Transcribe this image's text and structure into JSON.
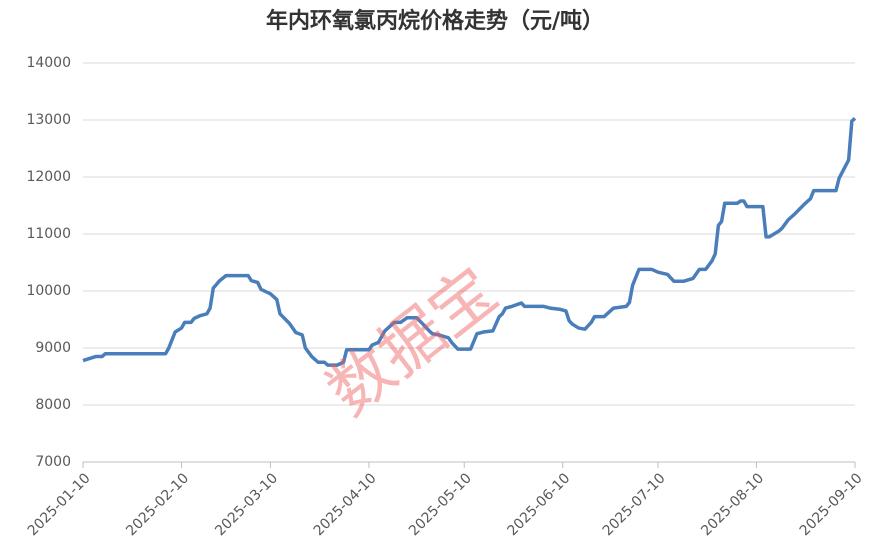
{
  "chart_data": {
    "type": "line",
    "title": "年内环氧氯丙烷价格走势（元/吨）",
    "watermark": "数据宝",
    "x": [
      "2025-01-10",
      "2025-01-14",
      "2025-01-16",
      "2025-01-17",
      "2025-02-05",
      "2025-02-06",
      "2025-02-08",
      "2025-02-10",
      "2025-02-11",
      "2025-02-13",
      "2025-02-14",
      "2025-02-16",
      "2025-02-18",
      "2025-02-19",
      "2025-02-20",
      "2025-02-22",
      "2025-02-24",
      "2025-03-03",
      "2025-03-04",
      "2025-03-06",
      "2025-03-07",
      "2025-03-10",
      "2025-03-12",
      "2025-03-13",
      "2025-03-16",
      "2025-03-18",
      "2025-03-20",
      "2025-03-21",
      "2025-03-23",
      "2025-03-25",
      "2025-03-27",
      "2025-03-28",
      "2025-03-31",
      "2025-04-02",
      "2025-04-03",
      "2025-04-10",
      "2025-04-11",
      "2025-04-13",
      "2025-04-15",
      "2025-04-17",
      "2025-04-18",
      "2025-04-20",
      "2025-04-22",
      "2025-04-25",
      "2025-04-27",
      "2025-04-29",
      "2025-04-30",
      "2025-05-02",
      "2025-05-05",
      "2025-05-06",
      "2025-05-08",
      "2025-05-12",
      "2025-05-14",
      "2025-05-16",
      "2025-05-19",
      "2025-05-21",
      "2025-05-22",
      "2025-05-23",
      "2025-05-25",
      "2025-05-26",
      "2025-05-28",
      "2025-05-29",
      "2025-06-04",
      "2025-06-06",
      "2025-06-09",
      "2025-06-11",
      "2025-06-12",
      "2025-06-13",
      "2025-06-15",
      "2025-06-17",
      "2025-06-19",
      "2025-06-20",
      "2025-06-23",
      "2025-06-25",
      "2025-06-26",
      "2025-06-30",
      "2025-07-01",
      "2025-07-02",
      "2025-07-04",
      "2025-07-08",
      "2025-07-10",
      "2025-07-13",
      "2025-07-15",
      "2025-07-18",
      "2025-07-21",
      "2025-07-23",
      "2025-07-25",
      "2025-07-27",
      "2025-07-28",
      "2025-07-29",
      "2025-07-30",
      "2025-07-31",
      "2025-08-04",
      "2025-08-05",
      "2025-08-06",
      "2025-08-07",
      "2025-08-12",
      "2025-08-13",
      "2025-08-14",
      "2025-08-17",
      "2025-08-18",
      "2025-08-20",
      "2025-08-22",
      "2025-08-25",
      "2025-08-27",
      "2025-08-28",
      "2025-09-04",
      "2025-09-05",
      "2025-09-08",
      "2025-09-09",
      "2025-09-10"
    ],
    "series": [
      {
        "color": "#4a7ebb",
        "values": [
          8780,
          8850,
          8850,
          8900,
          8900,
          9000,
          9280,
          9350,
          9450,
          9450,
          9520,
          9570,
          9600,
          9700,
          10050,
          10180,
          10270,
          10270,
          10180,
          10150,
          10030,
          9950,
          9850,
          9600,
          9430,
          9270,
          9230,
          9000,
          8850,
          8750,
          8750,
          8700,
          8700,
          8750,
          8970,
          8970,
          9050,
          9100,
          9300,
          9400,
          9450,
          9450,
          9530,
          9530,
          9420,
          9300,
          9250,
          9230,
          9180,
          9100,
          8980,
          8980,
          9250,
          9280,
          9300,
          9550,
          9600,
          9700,
          9730,
          9750,
          9790,
          9730,
          9730,
          9700,
          9680,
          9650,
          9480,
          9420,
          9350,
          9330,
          9450,
          9550,
          9550,
          9650,
          9700,
          9730,
          9800,
          10100,
          10380,
          10380,
          10330,
          10290,
          10170,
          10170,
          10220,
          10380,
          10380,
          10530,
          10650,
          11150,
          11220,
          11540,
          11540,
          11580,
          11580,
          11480,
          11480,
          10950,
          10950,
          11050,
          11100,
          11250,
          11350,
          11520,
          11620,
          11760,
          11760,
          11980,
          12300,
          12980,
          13030
        ]
      }
    ],
    "xlim": [
      "2025-01-10",
      "2025-09-10"
    ],
    "xticks": [
      "2025-01-10",
      "2025-02-10",
      "2025-03-10",
      "2025-04-10",
      "2025-05-10",
      "2025-06-10",
      "2025-07-10",
      "2025-08-10",
      "2025-09-10"
    ],
    "ylim": [
      7000,
      14000
    ],
    "yticks": [
      7000,
      8000,
      9000,
      10000,
      11000,
      12000,
      13000,
      14000
    ],
    "grid": true
  }
}
